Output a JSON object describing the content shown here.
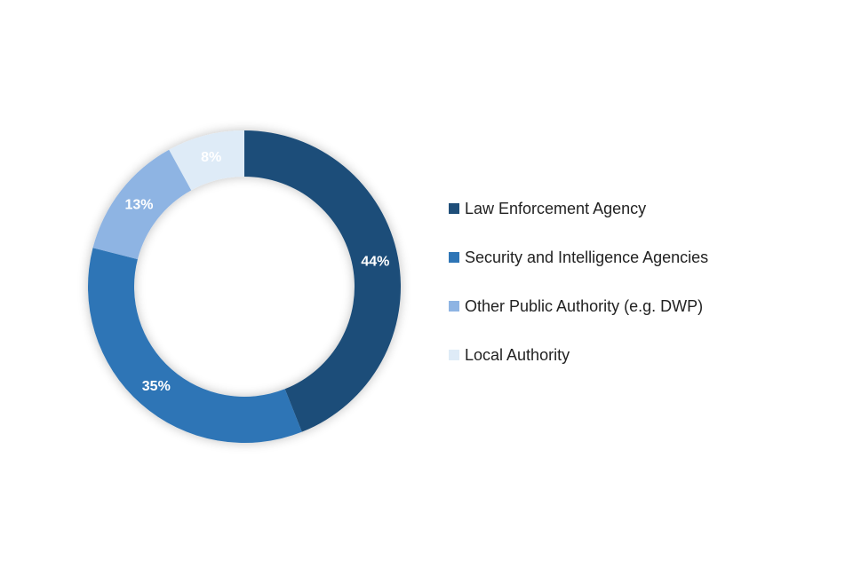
{
  "chart_data": {
    "type": "pie",
    "donut": true,
    "legend_position": "right",
    "categories": [
      "Law Enforcement Agency",
      "Security and Intelligence Agencies",
      "Other Public Authority (e.g. DWP)",
      "Local Authority"
    ],
    "values": [
      44,
      35,
      13,
      8
    ],
    "value_labels": [
      "44%",
      "35%",
      "13%",
      "8%"
    ],
    "colors": [
      "#1f4e79",
      "#2e75b6",
      "#8eb4e3",
      "#deebf7"
    ]
  }
}
